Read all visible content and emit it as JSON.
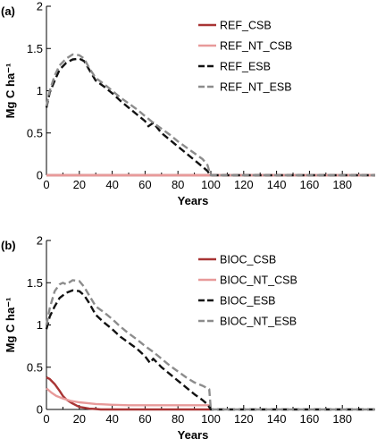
{
  "colors": {
    "CSB": "#a83434",
    "NT_CSB": "#e89a9a",
    "ESB": "#111111",
    "NT_ESB": "#8c8c8c"
  },
  "chart_data": [
    {
      "type": "line",
      "panel_label": "(a)",
      "xlabel": "Years",
      "ylabel": "Mg C ha⁻¹",
      "xlim": [
        0,
        200
      ],
      "ylim": [
        0,
        2
      ],
      "xticks": [
        0,
        20,
        40,
        60,
        80,
        100,
        120,
        140,
        160,
        180
      ],
      "yticks": [
        0,
        0.5,
        1,
        1.5,
        2
      ],
      "ytick_labels": [
        "0",
        "0.5",
        "1",
        "1.5",
        "2"
      ],
      "legend_position": "top-right",
      "series": [
        {
          "name": "REF_CSB",
          "color_key": "CSB",
          "dash": "solid",
          "x": [
            0,
            200
          ],
          "y": [
            0,
            0
          ]
        },
        {
          "name": "REF_NT_CSB",
          "color_key": "NT_CSB",
          "dash": "solid",
          "x": [
            0,
            200
          ],
          "y": [
            0,
            0
          ]
        },
        {
          "name": "REF_ESB",
          "color_key": "ESB",
          "dash": "dashed",
          "x": [
            0,
            2,
            5,
            8,
            12,
            16,
            20,
            23,
            26,
            30,
            35,
            40,
            45,
            50,
            55,
            60,
            62,
            65,
            70,
            75,
            80,
            85,
            90,
            95,
            98,
            99,
            100,
            110,
            200
          ],
          "y": [
            0.8,
            0.98,
            1.12,
            1.25,
            1.33,
            1.37,
            1.38,
            1.35,
            1.25,
            1.12,
            1.05,
            0.97,
            0.88,
            0.8,
            0.72,
            0.64,
            0.58,
            0.62,
            0.5,
            0.42,
            0.34,
            0.26,
            0.18,
            0.1,
            0.05,
            0.02,
            0,
            0,
            0
          ]
        },
        {
          "name": "REF_NT_ESB",
          "color_key": "NT_ESB",
          "dash": "dashed",
          "x": [
            0,
            2,
            5,
            8,
            12,
            16,
            20,
            23,
            26,
            30,
            35,
            40,
            45,
            50,
            55,
            60,
            65,
            70,
            75,
            80,
            85,
            90,
            95,
            98,
            99,
            100,
            110,
            200
          ],
          "y": [
            0.82,
            1.0,
            1.18,
            1.3,
            1.38,
            1.43,
            1.42,
            1.38,
            1.27,
            1.15,
            1.08,
            1.0,
            0.92,
            0.85,
            0.78,
            0.7,
            0.62,
            0.55,
            0.48,
            0.4,
            0.33,
            0.26,
            0.19,
            0.12,
            0.05,
            0,
            0,
            0
          ]
        }
      ]
    },
    {
      "type": "line",
      "panel_label": "(b)",
      "xlabel": "Years",
      "ylabel": "Mg C ha⁻¹",
      "xlim": [
        0,
        200
      ],
      "ylim": [
        0,
        2
      ],
      "xticks": [
        0,
        20,
        40,
        60,
        80,
        100,
        120,
        140,
        160,
        180
      ],
      "yticks": [
        0,
        0.5,
        1,
        1.5,
        2
      ],
      "ytick_labels": [
        "0",
        "0.5",
        "1",
        "1.5",
        "2"
      ],
      "legend_position": "top-right",
      "series": [
        {
          "name": "BIOC_CSB",
          "color_key": "CSB",
          "dash": "solid",
          "x": [
            0,
            2,
            5,
            8,
            10,
            12,
            15,
            18,
            20,
            23,
            26,
            30,
            33,
            35,
            100
          ],
          "y": [
            0.38,
            0.36,
            0.3,
            0.22,
            0.16,
            0.12,
            0.08,
            0.05,
            0.03,
            0.02,
            0.01,
            0.005,
            0,
            0,
            0
          ]
        },
        {
          "name": "BIOC_NT_CSB",
          "color_key": "NT_CSB",
          "dash": "solid",
          "x": [
            0,
            3,
            6,
            10,
            15,
            20,
            25,
            30,
            35,
            40,
            50,
            60,
            70,
            80,
            90,
            100
          ],
          "y": [
            0.25,
            0.2,
            0.16,
            0.13,
            0.1,
            0.085,
            0.075,
            0.065,
            0.06,
            0.055,
            0.05,
            0.05,
            0.05,
            0.05,
            0.05,
            0.05
          ]
        },
        {
          "name": "BIOC_ESB",
          "color_key": "ESB",
          "dash": "dashed",
          "x": [
            0,
            2,
            5,
            8,
            12,
            16,
            20,
            23,
            26,
            30,
            35,
            40,
            45,
            50,
            55,
            60,
            63,
            65,
            70,
            75,
            80,
            85,
            90,
            95,
            98,
            99,
            100,
            110,
            200
          ],
          "y": [
            0.95,
            1.1,
            1.22,
            1.32,
            1.38,
            1.41,
            1.4,
            1.35,
            1.26,
            1.12,
            1.03,
            0.95,
            0.86,
            0.79,
            0.72,
            0.63,
            0.55,
            0.6,
            0.5,
            0.42,
            0.34,
            0.26,
            0.18,
            0.11,
            0.06,
            0.03,
            0,
            0,
            0
          ]
        },
        {
          "name": "BIOC_NT_ESB",
          "color_key": "NT_ESB",
          "dash": "dashed",
          "x": [
            0,
            2,
            5,
            8,
            10,
            12,
            16,
            20,
            23,
            26,
            30,
            35,
            40,
            45,
            50,
            55,
            60,
            65,
            70,
            75,
            80,
            85,
            90,
            95,
            98,
            99,
            100,
            110,
            200
          ],
          "y": [
            1.0,
            1.2,
            1.4,
            1.48,
            1.5,
            1.48,
            1.53,
            1.52,
            1.45,
            1.35,
            1.22,
            1.15,
            1.07,
            0.98,
            0.9,
            0.83,
            0.75,
            0.68,
            0.6,
            0.52,
            0.45,
            0.38,
            0.32,
            0.28,
            0.25,
            0.24,
            0,
            0,
            0
          ]
        }
      ]
    }
  ]
}
